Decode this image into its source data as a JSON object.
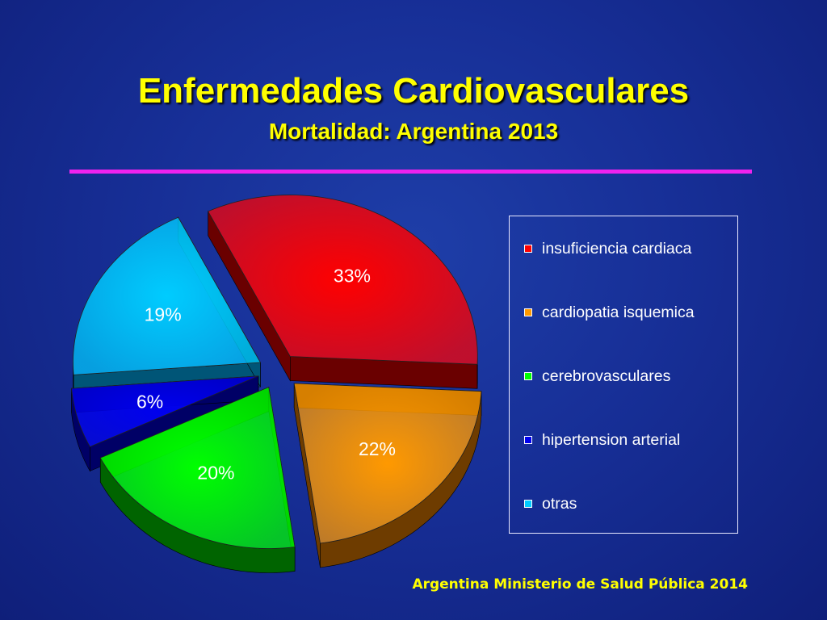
{
  "header": {
    "title": "Enfermedades Cardiovasculares",
    "subtitle": "Mortalidad: Argentina 2013"
  },
  "footer": {
    "source": "Argentina Ministerio de Salud Pública 2014"
  },
  "chart_data": {
    "type": "pie",
    "style": "3d-exploded",
    "title": "Enfermedades Cardiovasculares",
    "subtitle": "Mortalidad: Argentina 2013",
    "legend_placement": "right",
    "slices": [
      {
        "name": "insuficiencia cardiaca",
        "value": 33,
        "label": "33%",
        "color": "#ff0000",
        "side": "#6a0000"
      },
      {
        "name": "cardiopatia isquemica",
        "value": 22,
        "label": "22%",
        "color": "#ff9900",
        "side": "#6e3c00"
      },
      {
        "name": "cerebrovasculares",
        "value": 20,
        "label": "20%",
        "color": "#00ff00",
        "side": "#006400"
      },
      {
        "name": "hipertension arterial",
        "value": 6,
        "label": "6%",
        "color": "#0000ee",
        "side": "#000066"
      },
      {
        "name": "otras",
        "value": 19,
        "label": "19%",
        "color": "#00ccff",
        "side": "#005577"
      }
    ]
  }
}
